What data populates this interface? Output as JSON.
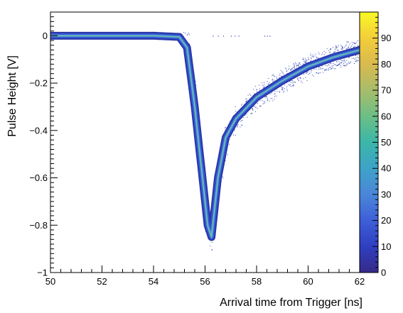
{
  "chart_data": {
    "type": "heatmap",
    "title": "",
    "xlabel": "Arrival time from Trigger [ns]",
    "ylabel": "Pulse Height [V]",
    "xlim": [
      50,
      62
    ],
    "ylim": [
      -1,
      0.1
    ],
    "x_ticks": [
      50,
      52,
      54,
      56,
      58,
      60,
      62
    ],
    "x_tick_labels": [
      "50",
      "52",
      "54",
      "56",
      "58",
      "60",
      "62"
    ],
    "y_ticks": [
      0,
      -0.2,
      -0.4,
      -0.6,
      -0.8,
      -1
    ],
    "y_tick_labels": [
      "0",
      "−0.2",
      "−0.4",
      "−0.6",
      "−0.8",
      "−1"
    ],
    "colorbar": {
      "zlim": [
        0,
        100
      ],
      "ticks": [
        0,
        10,
        20,
        30,
        40,
        50,
        60,
        70,
        80,
        90
      ],
      "tick_labels": [
        "0",
        "10",
        "20",
        "30",
        "40",
        "50",
        "60",
        "70",
        "80",
        "90"
      ],
      "palette": "viridis-like (dark blue to yellow)"
    },
    "grid": false,
    "legend": "none",
    "band_center": {
      "x": [
        50,
        52,
        54,
        55.0,
        55.3,
        55.6,
        55.9,
        56.1,
        56.25,
        56.5,
        56.8,
        57.2,
        58,
        59,
        60,
        61,
        62
      ],
      "y": [
        0.0,
        0.0,
        0.0,
        -0.005,
        -0.05,
        -0.3,
        -0.6,
        -0.8,
        -0.85,
        -0.6,
        -0.43,
        -0.35,
        -0.26,
        -0.19,
        -0.13,
        -0.09,
        -0.06
      ]
    }
  }
}
